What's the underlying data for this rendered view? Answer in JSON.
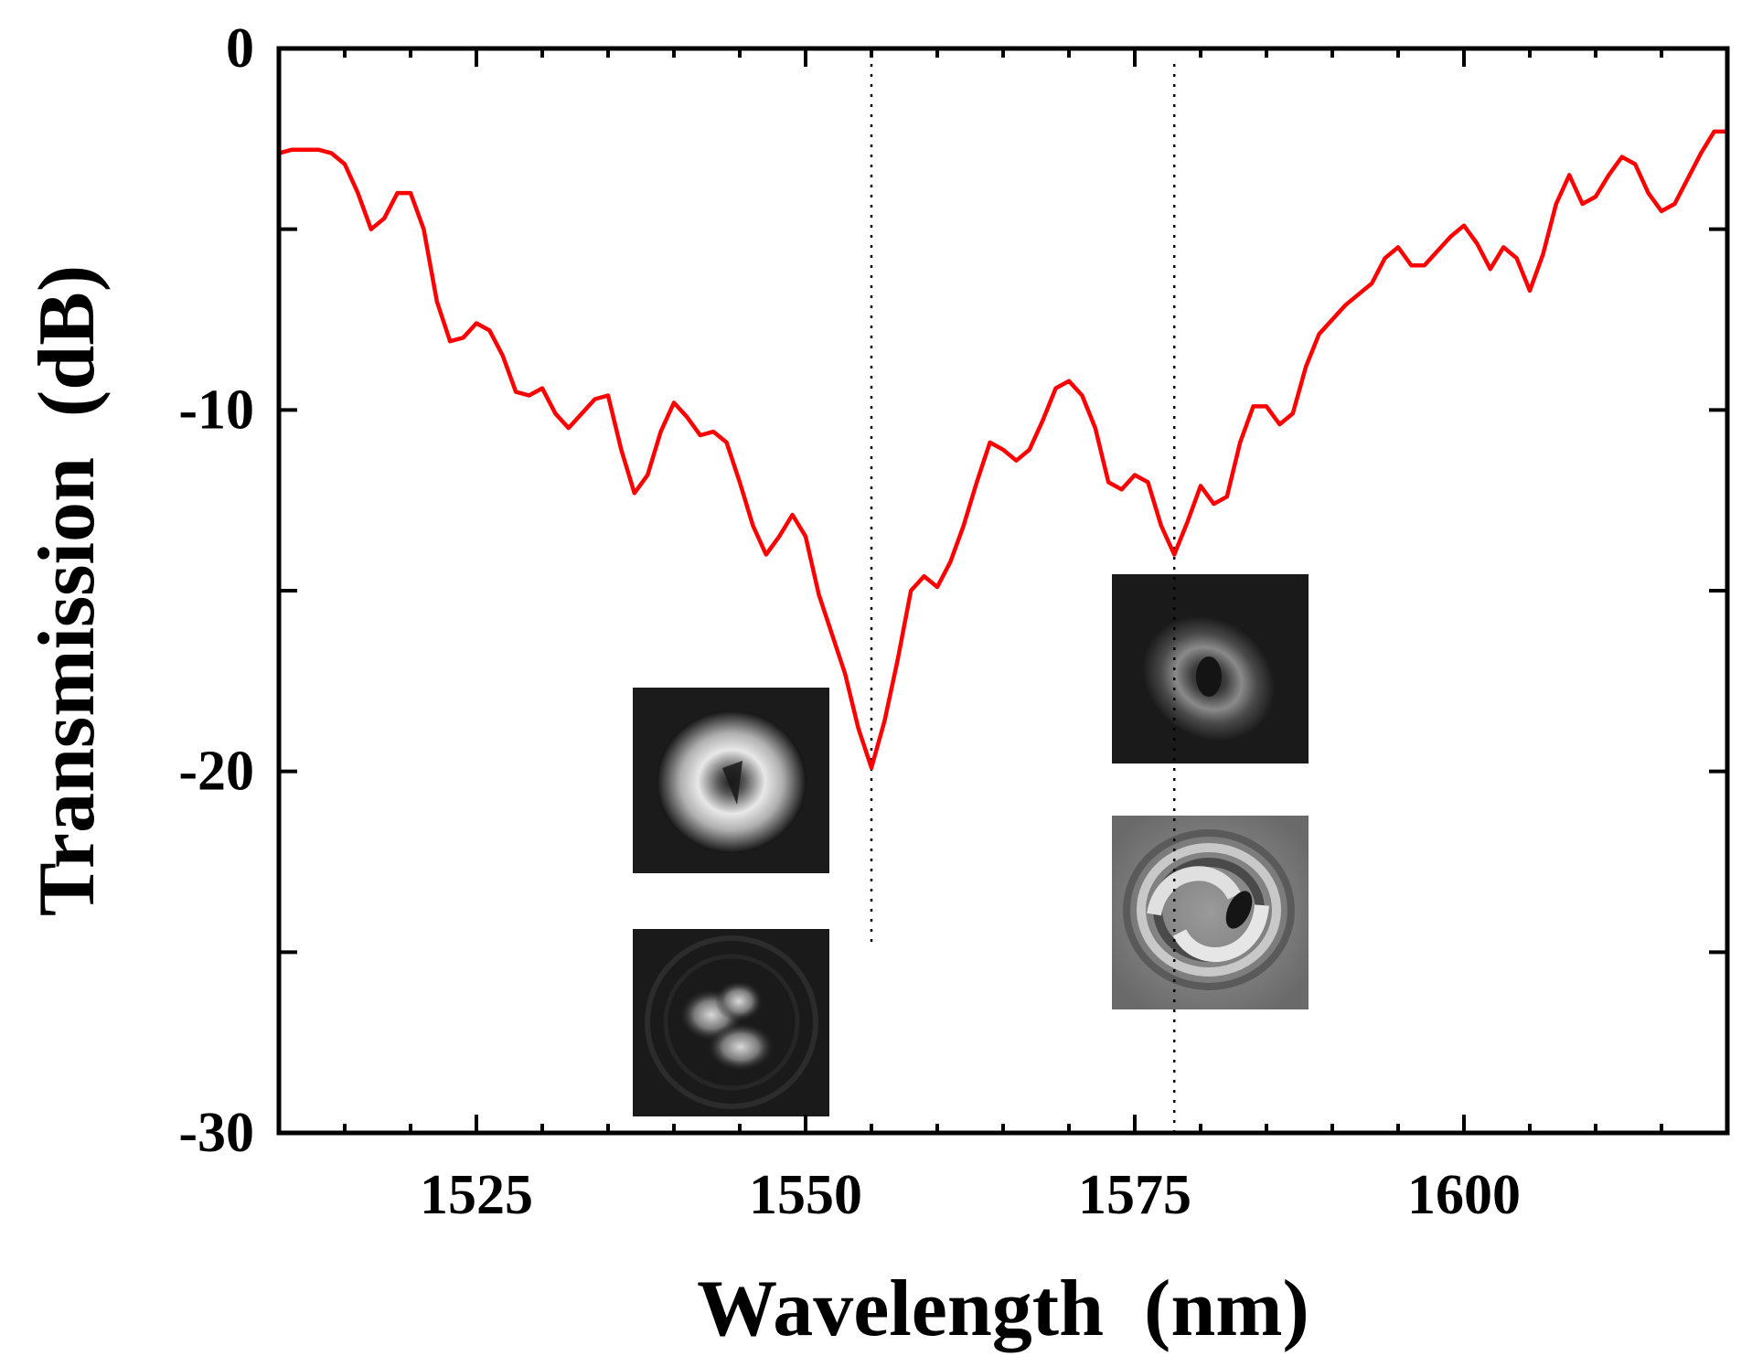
{
  "chart_data": {
    "type": "line",
    "title": "",
    "xlabel": "Wavelength  (nm)",
    "ylabel": "Transmission  (dB)",
    "xlim": [
      1510,
      1620
    ],
    "ylim": [
      -30,
      0
    ],
    "xticks": [
      1525,
      1550,
      1575,
      1600
    ],
    "yticks": [
      0,
      -10,
      -20,
      -30
    ],
    "grid": false,
    "line_color": "#ff0000",
    "series": [
      {
        "name": "transmission",
        "x": [
          1510,
          1511,
          1512,
          1513,
          1514,
          1515,
          1516,
          1517,
          1518,
          1519,
          1520,
          1521,
          1522,
          1523,
          1524,
          1525,
          1526,
          1527,
          1528,
          1529,
          1530,
          1531,
          1532,
          1533,
          1534,
          1535,
          1536,
          1537,
          1538,
          1539,
          1540,
          1541,
          1542,
          1543,
          1544,
          1545,
          1546,
          1547,
          1548,
          1549,
          1550,
          1551,
          1552,
          1553,
          1554,
          1555,
          1556,
          1557,
          1558,
          1559,
          1560,
          1561,
          1562,
          1563,
          1564,
          1565,
          1566,
          1567,
          1568,
          1569,
          1570,
          1571,
          1572,
          1573,
          1574,
          1575,
          1576,
          1577,
          1578,
          1579,
          1580,
          1581,
          1582,
          1583,
          1584,
          1585,
          1586,
          1587,
          1588,
          1589,
          1590,
          1591,
          1592,
          1593,
          1594,
          1595,
          1596,
          1597,
          1598,
          1599,
          1600,
          1601,
          1602,
          1603,
          1604,
          1605,
          1606,
          1607,
          1608,
          1609,
          1610,
          1611,
          1612,
          1613,
          1614,
          1615,
          1616,
          1617,
          1618,
          1619,
          1620
        ],
        "y": [
          -2.9,
          -2.8,
          -2.8,
          -2.8,
          -2.9,
          -3.2,
          -4.0,
          -5.0,
          -4.7,
          -4.0,
          -4.0,
          -5.0,
          -7.0,
          -8.1,
          -8.0,
          -7.6,
          -7.8,
          -8.5,
          -9.5,
          -9.6,
          -9.4,
          -10.1,
          -10.5,
          -10.1,
          -9.7,
          -9.6,
          -11.1,
          -12.3,
          -11.8,
          -10.6,
          -9.8,
          -10.2,
          -10.7,
          -10.6,
          -10.9,
          -12.0,
          -13.2,
          -14.0,
          -13.5,
          -12.9,
          -13.5,
          -15.1,
          -16.2,
          -17.3,
          -18.8,
          -19.9,
          -18.6,
          -16.9,
          -15.0,
          -14.6,
          -14.9,
          -14.2,
          -13.2,
          -12.0,
          -10.9,
          -11.1,
          -11.4,
          -11.1,
          -10.3,
          -9.4,
          -9.2,
          -9.6,
          -10.5,
          -12.0,
          -12.2,
          -11.8,
          -12.0,
          -13.2,
          -14.0,
          -13.1,
          -12.1,
          -12.6,
          -12.4,
          -10.9,
          -9.9,
          -9.9,
          -10.4,
          -10.1,
          -8.8,
          -7.9,
          -7.5,
          -7.1,
          -6.8,
          -6.5,
          -5.8,
          -5.5,
          -6.0,
          -6.0,
          -5.6,
          -5.2,
          -4.9,
          -5.4,
          -6.1,
          -5.5,
          -5.8,
          -6.7,
          -5.7,
          -4.3,
          -3.5,
          -4.3,
          -4.1,
          -3.5,
          -3.0,
          -3.2,
          -4.0,
          -4.5,
          -4.3,
          -3.6,
          -2.9,
          -2.3,
          -2.3
        ]
      }
    ],
    "markers": [
      {
        "name": "dip-1",
        "x": 1555
      },
      {
        "name": "dip-2",
        "x": 1578
      }
    ],
    "insets": [
      {
        "name": "mode-image-top-left",
        "description": "bright donut mode"
      },
      {
        "name": "mode-image-bottom-left",
        "description": "three-lobe interference pattern"
      },
      {
        "name": "mode-image-top-right",
        "description": "faint donut mode"
      },
      {
        "name": "mode-image-bottom-right",
        "description": "spiral interference pattern"
      }
    ]
  }
}
